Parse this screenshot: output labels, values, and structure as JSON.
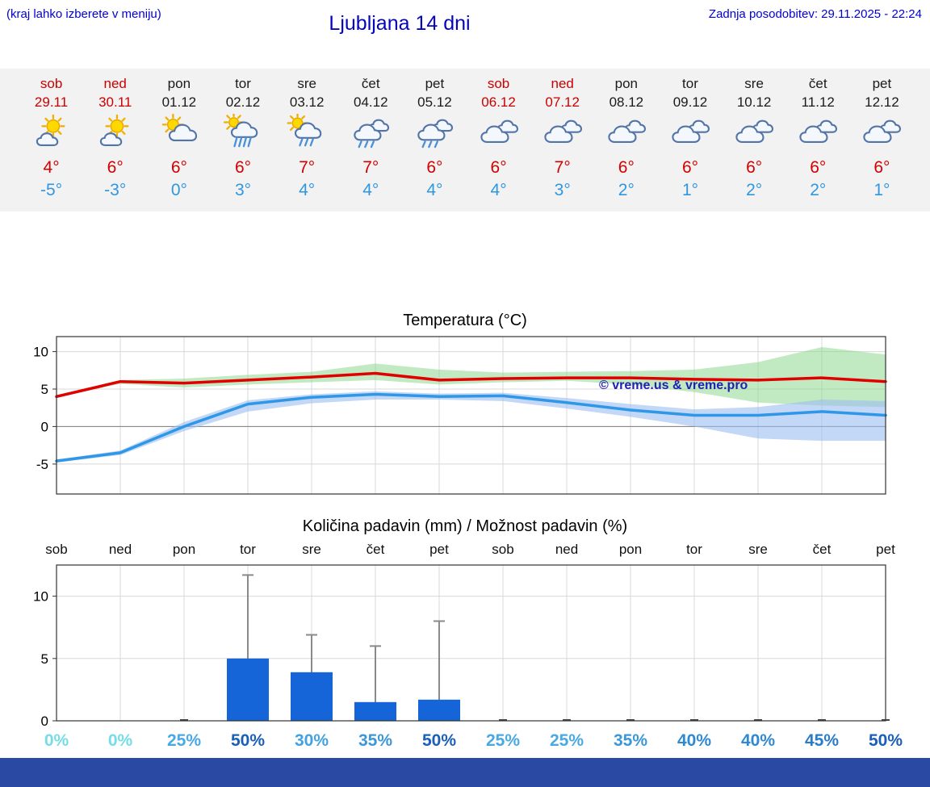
{
  "header": {
    "hint": "(kraj lahko izberete v meniju)",
    "title": "Ljubljana 14 dni",
    "last_update": "Zadnja posodobitev: 29.11.2025 - 22:24"
  },
  "colors": {
    "weekend_text": "#cc0000",
    "weekday_text": "#1a1a1a",
    "tmax_text": "#d40000",
    "tmin_text": "#2f97e0",
    "grid_light": "#d8d8d8",
    "grid_zero": "#777777",
    "axis_border": "#333333",
    "whisker": "#8a8a8a",
    "watermark_text": "#2121b0",
    "footer_bar": "#2a49a3"
  },
  "days": [
    {
      "name": "sob",
      "date": "29.11",
      "weekend": true,
      "icon": "partly-sunny",
      "tmax": "4°",
      "tmin": "-5°"
    },
    {
      "name": "ned",
      "date": "30.11",
      "weekend": true,
      "icon": "partly-sunny",
      "tmax": "6°",
      "tmin": "-3°"
    },
    {
      "name": "pon",
      "date": "01.12",
      "weekend": false,
      "icon": "sun-cloud",
      "tmax": "6°",
      "tmin": "0°"
    },
    {
      "name": "tor",
      "date": "02.12",
      "weekend": false,
      "icon": "sun-rain-heavy",
      "tmax": "6°",
      "tmin": "3°"
    },
    {
      "name": "sre",
      "date": "03.12",
      "weekend": false,
      "icon": "sun-rain",
      "tmax": "7°",
      "tmin": "4°"
    },
    {
      "name": "čet",
      "date": "04.12",
      "weekend": false,
      "icon": "rain",
      "tmax": "7°",
      "tmin": "4°"
    },
    {
      "name": "pet",
      "date": "05.12",
      "weekend": false,
      "icon": "rain",
      "tmax": "6°",
      "tmin": "4°"
    },
    {
      "name": "sob",
      "date": "06.12",
      "weekend": true,
      "icon": "cloudy",
      "tmax": "6°",
      "tmin": "4°"
    },
    {
      "name": "ned",
      "date": "07.12",
      "weekend": true,
      "icon": "cloudy",
      "tmax": "7°",
      "tmin": "3°"
    },
    {
      "name": "pon",
      "date": "08.12",
      "weekend": false,
      "icon": "cloudy",
      "tmax": "6°",
      "tmin": "2°"
    },
    {
      "name": "tor",
      "date": "09.12",
      "weekend": false,
      "icon": "cloudy",
      "tmax": "6°",
      "tmin": "1°"
    },
    {
      "name": "sre",
      "date": "10.12",
      "weekend": false,
      "icon": "cloudy",
      "tmax": "6°",
      "tmin": "2°"
    },
    {
      "name": "čet",
      "date": "11.12",
      "weekend": false,
      "icon": "cloudy",
      "tmax": "6°",
      "tmin": "2°"
    },
    {
      "name": "pet",
      "date": "12.12",
      "weekend": false,
      "icon": "cloudy",
      "tmax": "6°",
      "tmin": "1°"
    }
  ],
  "chart_data": [
    {
      "type": "line",
      "title": "Temperatura (°C)",
      "categories": [
        "sob",
        "ned",
        "pon",
        "tor",
        "sre",
        "čet",
        "pet",
        "sob",
        "ned",
        "pon",
        "tor",
        "sre",
        "čet",
        "pet"
      ],
      "ylim": [
        -9,
        12
      ],
      "yticks": [
        -5,
        0,
        5,
        10
      ],
      "grid": true,
      "watermark": "© vreme.us & vreme.pro",
      "series": [
        {
          "name": "max-temp",
          "color": "#e00000",
          "values": [
            4.0,
            6.0,
            5.8,
            6.2,
            6.6,
            7.1,
            6.2,
            6.4,
            6.5,
            6.5,
            6.3,
            6.2,
            6.5,
            6.0
          ]
        },
        {
          "name": "min-temp",
          "color": "#2e97e8",
          "values": [
            -4.6,
            -3.5,
            0.0,
            3.0,
            3.9,
            4.3,
            4.0,
            4.1,
            3.2,
            2.2,
            1.5,
            1.5,
            2.0,
            1.5
          ]
        }
      ],
      "bands": [
        {
          "name": "max-range",
          "color": "#8fd98f",
          "opacity": 0.55,
          "hi": [
            4.2,
            6.2,
            6.4,
            6.9,
            7.3,
            8.4,
            7.6,
            7.2,
            7.3,
            7.4,
            7.6,
            8.6,
            10.6,
            9.6
          ],
          "lo": [
            3.9,
            5.7,
            5.2,
            5.6,
            5.9,
            6.2,
            5.6,
            5.9,
            6.1,
            5.6,
            4.6,
            3.2,
            2.8,
            2.6
          ]
        },
        {
          "name": "min-range",
          "color": "#9bbdf0",
          "opacity": 0.6,
          "hi": [
            -4.4,
            -3.2,
            0.6,
            3.5,
            4.3,
            4.7,
            4.4,
            4.5,
            3.8,
            3.0,
            2.3,
            2.6,
            3.6,
            3.4
          ],
          "lo": [
            -4.8,
            -3.8,
            -0.6,
            2.0,
            3.1,
            3.6,
            3.6,
            3.4,
            2.4,
            1.3,
            0.0,
            -1.6,
            -1.9,
            -1.9
          ]
        }
      ]
    },
    {
      "type": "bar",
      "title": "Količina padavin (mm) / Možnost padavin (%)",
      "categories": [
        "sob",
        "ned",
        "pon",
        "tor",
        "sre",
        "čet",
        "pet",
        "sob",
        "ned",
        "pon",
        "tor",
        "sre",
        "čet",
        "pet"
      ],
      "ylim": [
        0,
        12.5
      ],
      "yticks": [
        0,
        5,
        10
      ],
      "grid": true,
      "bar_color": "#1565d8",
      "values": [
        0,
        0,
        0,
        5.0,
        3.9,
        1.5,
        1.7,
        0,
        0,
        0,
        0,
        0,
        0,
        0
      ],
      "whisker_hi": [
        null,
        null,
        null,
        11.7,
        6.9,
        6.0,
        8.0,
        null,
        null,
        null,
        null,
        null,
        null,
        null
      ],
      "whisker_lo": [
        null,
        null,
        null,
        null,
        0.6,
        null,
        null,
        null,
        null,
        null,
        null,
        null,
        null,
        null
      ],
      "percentages": [
        {
          "label": "0%",
          "color": "#76dce6"
        },
        {
          "label": "0%",
          "color": "#76dce6"
        },
        {
          "label": "25%",
          "color": "#4aa9e2"
        },
        {
          "label": "50%",
          "color": "#1b5fb8"
        },
        {
          "label": "30%",
          "color": "#43a2de"
        },
        {
          "label": "35%",
          "color": "#3c97d8"
        },
        {
          "label": "50%",
          "color": "#1b5fb8"
        },
        {
          "label": "25%",
          "color": "#4aa9e2"
        },
        {
          "label": "25%",
          "color": "#4aa9e2"
        },
        {
          "label": "35%",
          "color": "#3c97d8"
        },
        {
          "label": "40%",
          "color": "#3089d0"
        },
        {
          "label": "40%",
          "color": "#3089d0"
        },
        {
          "label": "45%",
          "color": "#2a7cc8"
        },
        {
          "label": "50%",
          "color": "#1b5fb8"
        }
      ]
    }
  ]
}
